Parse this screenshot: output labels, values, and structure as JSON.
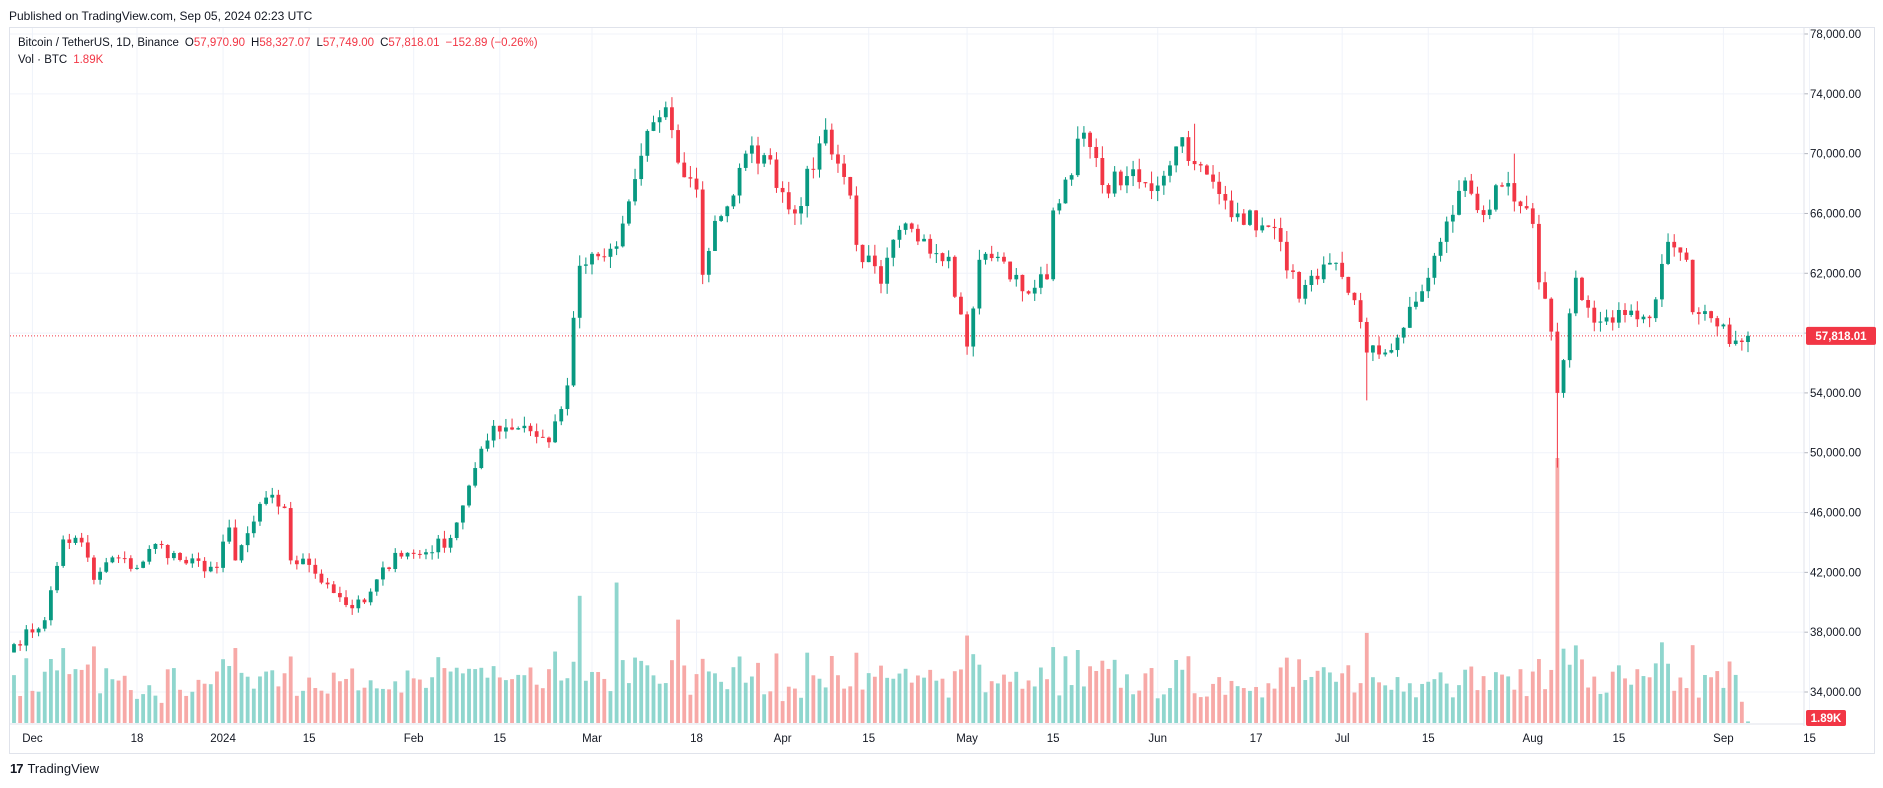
{
  "published": "Published on TradingView.com, Sep 05, 2024 02:23 UTC",
  "brand": {
    "logo": "17",
    "name": "TradingView"
  },
  "legend": {
    "symbol": "Bitcoin / TetherUS, 1D, Binance",
    "o_label": "O",
    "o": "57,970.90",
    "h_label": "H",
    "h": "58,327.07",
    "l_label": "L",
    "l": "57,749.00",
    "c_label": "C",
    "c": "57,818.01",
    "change": "−152.89 (−0.26%)",
    "vol_label": "Vol · BTC",
    "vol": "1.89K"
  },
  "colors": {
    "up": "#089981",
    "down": "#f23645",
    "vol_up": "#8fd6ce",
    "vol_down": "#f7a9a7",
    "grid": "#f0f3fa",
    "border": "#e0e3eb",
    "price_tag": "#f23645"
  },
  "chart_data": {
    "type": "candlestick",
    "symbol": "BTCUSDT",
    "interval": "1D",
    "exchange": "Binance",
    "x_start": "2023-11-28",
    "x_end": "2024-09-05",
    "ylim": [
      33000,
      78000
    ],
    "y_ticks": [
      "78,000.00",
      "74,000.00",
      "70,000.00",
      "66,000.00",
      "62,000.00",
      "58,000.00",
      "54,000.00",
      "50,000.00",
      "46,000.00",
      "42,000.00",
      "38,000.00",
      "34,000.00"
    ],
    "y_tick_values": [
      78000,
      74000,
      70000,
      66000,
      62000,
      58000,
      54000,
      50000,
      46000,
      42000,
      38000,
      34000
    ],
    "x_ticks": [
      "Dec",
      "18",
      "2024",
      "15",
      "Feb",
      "15",
      "Mar",
      "18",
      "Apr",
      "15",
      "May",
      "15",
      "Jun",
      "17",
      "Jul",
      "15",
      "Aug",
      "15",
      "Sep",
      "15"
    ],
    "x_tick_dates": [
      "2023-12-01",
      "2023-12-18",
      "2024-01-01",
      "2024-01-15",
      "2024-02-01",
      "2024-02-15",
      "2024-03-01",
      "2024-03-18",
      "2024-04-01",
      "2024-04-15",
      "2024-05-01",
      "2024-05-15",
      "2024-06-01",
      "2024-06-17",
      "2024-07-01",
      "2024-07-15",
      "2024-08-01",
      "2024-08-15",
      "2024-09-01",
      "2024-09-15"
    ],
    "last_price": 57818.01,
    "last_price_label": "57,818.01",
    "last_volume_label": "1.89K",
    "close_points": [
      [
        "2023-11-28",
        37200
      ],
      [
        "2023-12-03",
        38800
      ],
      [
        "2023-12-06",
        44200
      ],
      [
        "2023-12-09",
        44000
      ],
      [
        "2023-12-11",
        41500
      ],
      [
        "2023-12-14",
        43000
      ],
      [
        "2023-12-18",
        42300
      ],
      [
        "2023-12-21",
        43900
      ],
      [
        "2023-12-26",
        42600
      ],
      [
        "2023-12-31",
        42300
      ],
      [
        "2024-01-02",
        45000
      ],
      [
        "2024-01-03",
        42800
      ],
      [
        "2024-01-08",
        47000
      ],
      [
        "2024-01-11",
        46300
      ],
      [
        "2024-01-12",
        42800
      ],
      [
        "2024-01-15",
        42500
      ],
      [
        "2024-01-18",
        41200
      ],
      [
        "2024-01-22",
        39600
      ],
      [
        "2024-01-24",
        40000
      ],
      [
        "2024-01-29",
        43300
      ],
      [
        "2024-02-02",
        43200
      ],
      [
        "2024-02-07",
        44300
      ],
      [
        "2024-02-10",
        47800
      ],
      [
        "2024-02-14",
        51800
      ],
      [
        "2024-02-19",
        51800
      ],
      [
        "2024-02-23",
        50700
      ],
      [
        "2024-02-26",
        54500
      ],
      [
        "2024-02-28",
        62500
      ],
      [
        "2024-03-03",
        63100
      ],
      [
        "2024-03-05",
        63800
      ],
      [
        "2024-03-08",
        68300
      ],
      [
        "2024-03-11",
        72100
      ],
      [
        "2024-03-13",
        73100
      ],
      [
        "2024-03-15",
        69400
      ],
      [
        "2024-03-18",
        67600
      ],
      [
        "2024-03-19",
        61900
      ],
      [
        "2024-03-21",
        65500
      ],
      [
        "2024-03-24",
        67200
      ],
      [
        "2024-03-26",
        70000
      ],
      [
        "2024-03-29",
        69900
      ],
      [
        "2024-04-03",
        66000
      ],
      [
        "2024-04-08",
        71600
      ],
      [
        "2024-04-12",
        67200
      ],
      [
        "2024-04-13",
        63900
      ],
      [
        "2024-04-17",
        61300
      ],
      [
        "2024-04-20",
        64900
      ],
      [
        "2024-04-24",
        64300
      ],
      [
        "2024-04-28",
        63100
      ],
      [
        "2024-05-01",
        57100
      ],
      [
        "2024-05-03",
        62900
      ],
      [
        "2024-05-06",
        63100
      ],
      [
        "2024-05-10",
        60800
      ],
      [
        "2024-05-14",
        61600
      ],
      [
        "2024-05-15",
        66200
      ],
      [
        "2024-05-20",
        71400
      ],
      [
        "2024-05-23",
        67900
      ],
      [
        "2024-05-27",
        68500
      ],
      [
        "2024-05-31",
        67500
      ],
      [
        "2024-06-05",
        71100
      ],
      [
        "2024-06-07",
        69300
      ],
      [
        "2024-06-11",
        67300
      ],
      [
        "2024-06-14",
        66000
      ],
      [
        "2024-06-18",
        65200
      ],
      [
        "2024-06-21",
        64100
      ],
      [
        "2024-06-24",
        60300
      ],
      [
        "2024-06-27",
        61600
      ],
      [
        "2024-06-30",
        62700
      ],
      [
        "2024-07-03",
        60200
      ],
      [
        "2024-07-05",
        56700
      ],
      [
        "2024-07-08",
        56700
      ],
      [
        "2024-07-10",
        57700
      ],
      [
        "2024-07-14",
        60800
      ],
      [
        "2024-07-17",
        64100
      ],
      [
        "2024-07-21",
        68200
      ],
      [
        "2024-07-24",
        65900
      ],
      [
        "2024-07-27",
        67800
      ],
      [
        "2024-07-29",
        66800
      ],
      [
        "2024-08-01",
        65300
      ],
      [
        "2024-08-02",
        61400
      ],
      [
        "2024-08-04",
        58100
      ],
      [
        "2024-08-05",
        54000
      ],
      [
        "2024-08-08",
        61700
      ],
      [
        "2024-08-11",
        58700
      ],
      [
        "2024-08-14",
        58700
      ],
      [
        "2024-08-17",
        59500
      ],
      [
        "2024-08-20",
        59000
      ],
      [
        "2024-08-23",
        64100
      ],
      [
        "2024-08-26",
        62900
      ],
      [
        "2024-08-27",
        59400
      ],
      [
        "2024-08-30",
        59000
      ],
      [
        "2024-09-03",
        57500
      ],
      [
        "2024-09-05",
        57818
      ]
    ],
    "notable_wicks": [
      {
        "date": "2024-03-14",
        "high": 73777
      },
      {
        "date": "2024-05-01",
        "low": 56550
      },
      {
        "date": "2024-07-05",
        "low": 53500
      },
      {
        "date": "2024-08-05",
        "low": 49000
      },
      {
        "date": "2024-07-29",
        "high": 70000
      },
      {
        "date": "2024-06-07",
        "high": 72000
      }
    ],
    "volume_spikes_btc": [
      {
        "date": "2024-08-05",
        "relative": 1.0
      },
      {
        "date": "2024-03-05",
        "relative": 0.53
      },
      {
        "date": "2024-02-28",
        "relative": 0.48
      },
      {
        "date": "2024-03-15",
        "relative": 0.39
      },
      {
        "date": "2024-07-05",
        "relative": 0.34
      },
      {
        "date": "2024-05-01",
        "relative": 0.33
      }
    ]
  }
}
